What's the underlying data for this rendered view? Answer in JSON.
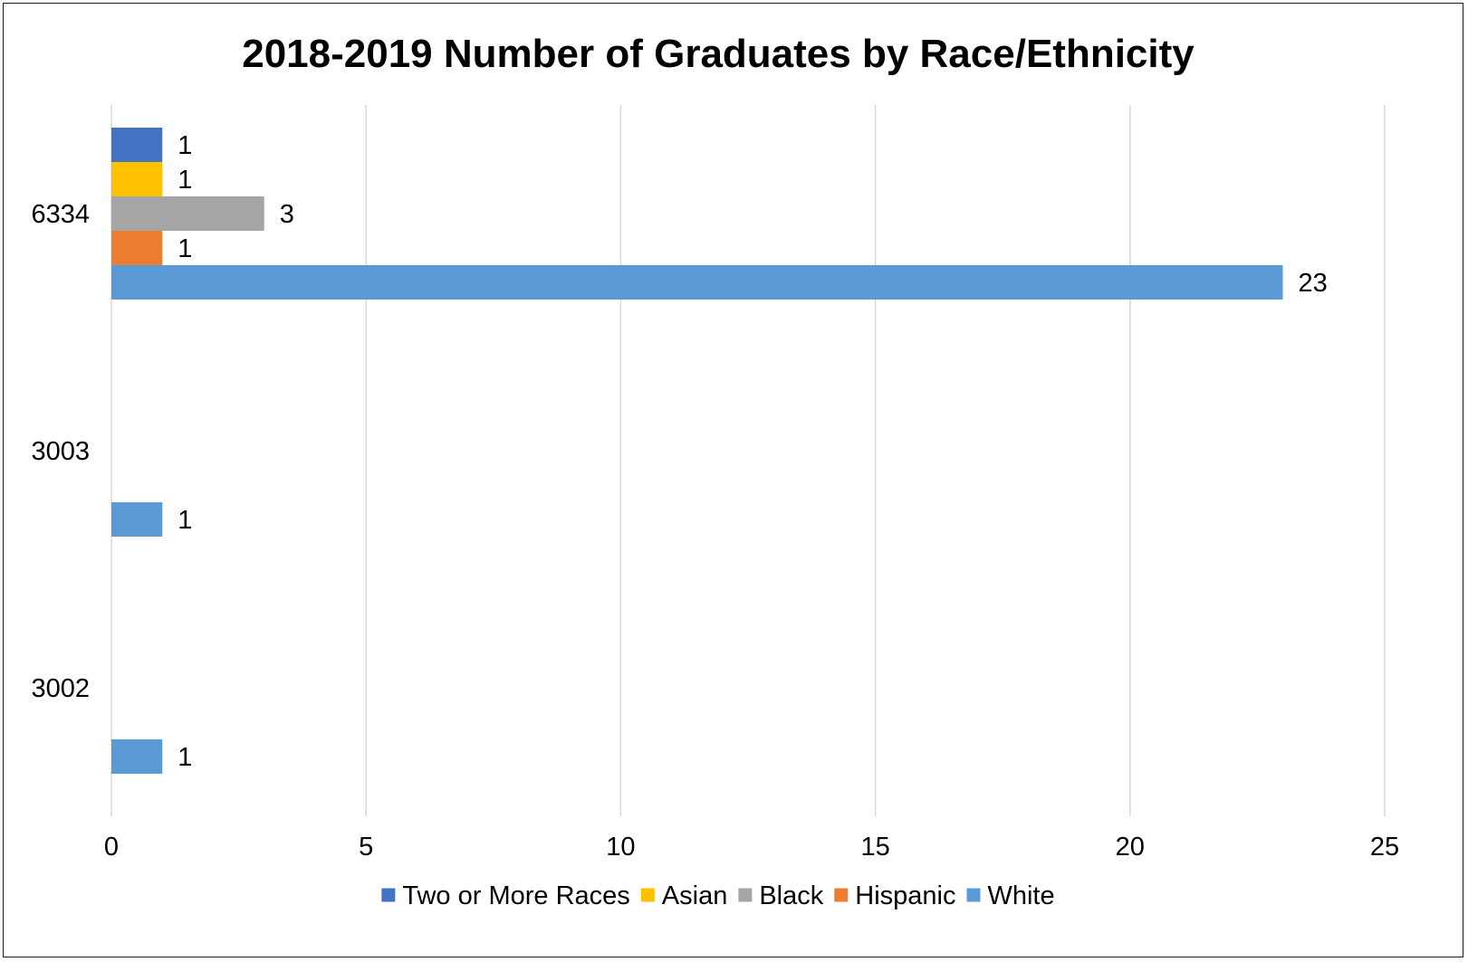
{
  "chart_data": {
    "type": "bar",
    "orientation": "horizontal",
    "title": "2018-2019 Number of Graduates by Race/Ethnicity",
    "xlabel": "",
    "ylabel": "",
    "categories": [
      "6334",
      "3003",
      "3002"
    ],
    "series": [
      {
        "name": "Two or More Races",
        "color": "#4472C4",
        "values": [
          1,
          null,
          null
        ]
      },
      {
        "name": "Asian",
        "color": "#FFC000",
        "values": [
          1,
          null,
          null
        ]
      },
      {
        "name": "Black",
        "color": "#A5A5A5",
        "values": [
          3,
          null,
          null
        ]
      },
      {
        "name": "Hispanic",
        "color": "#ED7D31",
        "values": [
          1,
          null,
          null
        ]
      },
      {
        "name": "White",
        "color": "#5B9BD5",
        "values": [
          23,
          1,
          1
        ]
      }
    ],
    "xlim": [
      0,
      25
    ],
    "x_ticks": [
      0,
      5,
      10,
      15,
      20,
      25
    ],
    "x_tick_labels": [
      "0",
      "5",
      "10",
      "15",
      "20",
      "25"
    ],
    "grid": "vertical",
    "data_labels": true,
    "legend_position": "bottom"
  }
}
